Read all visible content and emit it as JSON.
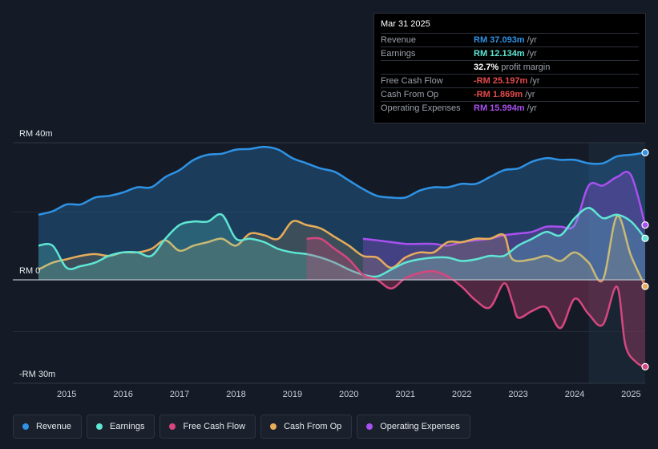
{
  "chart_data": {
    "type": "area",
    "y_axis": {
      "top_label": "RM 40m",
      "zero_label": "RM 0",
      "bottom_label": "-RM 30m",
      "ylim": [
        -30,
        40
      ]
    },
    "x_ticks": [
      "2015",
      "2016",
      "2017",
      "2018",
      "2019",
      "2020",
      "2021",
      "2022",
      "2023",
      "2024",
      "2025"
    ],
    "x_range": [
      2014.5,
      2025.25
    ],
    "highlight_start": 2024.25,
    "series": [
      {
        "key": "revenue",
        "name": "Revenue",
        "color": "#2e93e6",
        "fill_opacity": 0.28,
        "x": [
          2014.5,
          2014.75,
          2015,
          2015.25,
          2015.5,
          2015.75,
          2016,
          2016.25,
          2016.5,
          2016.75,
          2017,
          2017.25,
          2017.5,
          2017.75,
          2018,
          2018.25,
          2018.5,
          2018.75,
          2019,
          2019.25,
          2019.5,
          2019.75,
          2020,
          2020.25,
          2020.5,
          2020.75,
          2021,
          2021.25,
          2021.5,
          2021.75,
          2022,
          2022.25,
          2022.5,
          2022.75,
          2023,
          2023.25,
          2023.5,
          2023.75,
          2024,
          2024.25,
          2024.5,
          2024.75,
          2025,
          2025.25
        ],
        "values": [
          19,
          20,
          22,
          22,
          24,
          24.5,
          25.5,
          27,
          27,
          30,
          32,
          35,
          36.5,
          36.8,
          38,
          38.2,
          38.8,
          38,
          35.5,
          34,
          32.5,
          31.5,
          29,
          26.5,
          24.5,
          24,
          24,
          26,
          27,
          27,
          28,
          28,
          30,
          32,
          32.5,
          34.5,
          35.5,
          35,
          35,
          34,
          34,
          36,
          36.5,
          37.1
        ]
      },
      {
        "key": "earnings",
        "name": "Earnings",
        "color": "#5fe6d4",
        "fill_opacity": 0.22,
        "x": [
          2014.5,
          2014.75,
          2015,
          2015.25,
          2015.5,
          2015.75,
          2016,
          2016.25,
          2016.5,
          2016.75,
          2017,
          2017.25,
          2017.5,
          2017.75,
          2018,
          2018.25,
          2018.5,
          2018.75,
          2019,
          2019.25,
          2019.5,
          2019.75,
          2020,
          2020.25,
          2020.5,
          2020.75,
          2021,
          2021.25,
          2021.5,
          2021.75,
          2022,
          2022.25,
          2022.5,
          2022.75,
          2023,
          2023.25,
          2023.5,
          2023.75,
          2024,
          2024.25,
          2024.5,
          2024.75,
          2025,
          2025.25
        ],
        "values": [
          10,
          10,
          3.5,
          4,
          5,
          7,
          8,
          8,
          7,
          12,
          16,
          17,
          17,
          19,
          12,
          12,
          11,
          9,
          8,
          7.5,
          6.5,
          5,
          3,
          1.5,
          1,
          3,
          5,
          6,
          6.5,
          6.5,
          5.5,
          6,
          7,
          7,
          10,
          12,
          14,
          13,
          18,
          21,
          18,
          19,
          17,
          12.1
        ]
      },
      {
        "key": "fcf",
        "name": "Free Cash Flow",
        "color": "#d6477f",
        "fill_opacity": 0.3,
        "x": [
          2019.25,
          2019.5,
          2019.75,
          2020,
          2020.25,
          2020.5,
          2020.75,
          2021,
          2021.25,
          2021.5,
          2021.75,
          2022,
          2022.25,
          2022.5,
          2022.75,
          2022.9,
          2023,
          2023.25,
          2023.5,
          2023.75,
          2024,
          2024.25,
          2024.5,
          2024.75,
          2024.9,
          2025.1,
          2025.25
        ],
        "values": [
          12,
          12,
          9,
          6,
          1.5,
          0,
          -2.5,
          0.5,
          2,
          2.5,
          1,
          -2,
          -6,
          -8,
          -1,
          -6.5,
          -11,
          -9,
          -8,
          -14,
          -5.5,
          -10,
          -13,
          -2,
          -19,
          -24,
          -25.2
        ]
      },
      {
        "key": "cfo",
        "name": "Cash From Op",
        "color": "#e6ad5a",
        "fill_opacity": 0.16,
        "x": [
          2014.5,
          2014.75,
          2015,
          2015.25,
          2015.5,
          2015.75,
          2016,
          2016.25,
          2016.5,
          2016.75,
          2017,
          2017.25,
          2017.5,
          2017.75,
          2018,
          2018.25,
          2018.5,
          2018.75,
          2019,
          2019.25,
          2019.5,
          2019.75,
          2020,
          2020.25,
          2020.5,
          2020.75,
          2021,
          2021.25,
          2021.5,
          2021.75,
          2022,
          2022.25,
          2022.5,
          2022.75,
          2022.9,
          2023.25,
          2023.5,
          2023.75,
          2024,
          2024.25,
          2024.5,
          2024.75,
          2025,
          2025.25
        ],
        "values": [
          3,
          5,
          6,
          7,
          7.5,
          7,
          8,
          8,
          9,
          11.5,
          8.5,
          10,
          11,
          12,
          10,
          13.5,
          13,
          12,
          17,
          16,
          15,
          12.5,
          10,
          7,
          6.5,
          3.5,
          6.5,
          8,
          8,
          11,
          11,
          12,
          12,
          13,
          6,
          6,
          7,
          5.5,
          8,
          5,
          0,
          18.5,
          7,
          -1.9
        ]
      },
      {
        "key": "opex",
        "name": "Operating Expenses",
        "color": "#a850f0",
        "fill_opacity": 0.28,
        "x": [
          2020.25,
          2020.5,
          2020.75,
          2021,
          2021.25,
          2021.5,
          2021.75,
          2022,
          2022.25,
          2022.5,
          2022.75,
          2023,
          2023.25,
          2023.5,
          2023.75,
          2024,
          2024.25,
          2024.5,
          2024.75,
          2025,
          2025.25
        ],
        "values": [
          12,
          11.5,
          11,
          10.5,
          10.5,
          10.5,
          10,
          11,
          11.5,
          12,
          13,
          13.5,
          14,
          15.5,
          15.5,
          16,
          27.5,
          27.5,
          30,
          30.5,
          16
        ]
      }
    ]
  },
  "tooltip": {
    "date": "Mar 31 2025",
    "rows": [
      {
        "label": "Revenue",
        "value": "RM 37.093m",
        "unit": "/yr",
        "color": "#2e93e6"
      },
      {
        "label": "Earnings",
        "value": "RM 12.134m",
        "unit": "/yr",
        "color": "#5fe6d4"
      },
      {
        "label": "",
        "value": "32.7%",
        "unit": "profit margin",
        "color": "#ffffff"
      },
      {
        "label": "Free Cash Flow",
        "value": "-RM 25.197m",
        "unit": "/yr",
        "color": "#e64b4b"
      },
      {
        "label": "Cash From Op",
        "value": "-RM 1.869m",
        "unit": "/yr",
        "color": "#e64b4b"
      },
      {
        "label": "Operating Expenses",
        "value": "RM 15.994m",
        "unit": "/yr",
        "color": "#a850f0"
      }
    ]
  },
  "legend": [
    {
      "label": "Revenue",
      "color": "#2e93e6"
    },
    {
      "label": "Earnings",
      "color": "#5fe6d4"
    },
    {
      "label": "Free Cash Flow",
      "color": "#d6477f"
    },
    {
      "label": "Cash From Op",
      "color": "#e6ad5a"
    },
    {
      "label": "Operating Expenses",
      "color": "#a850f0"
    }
  ]
}
